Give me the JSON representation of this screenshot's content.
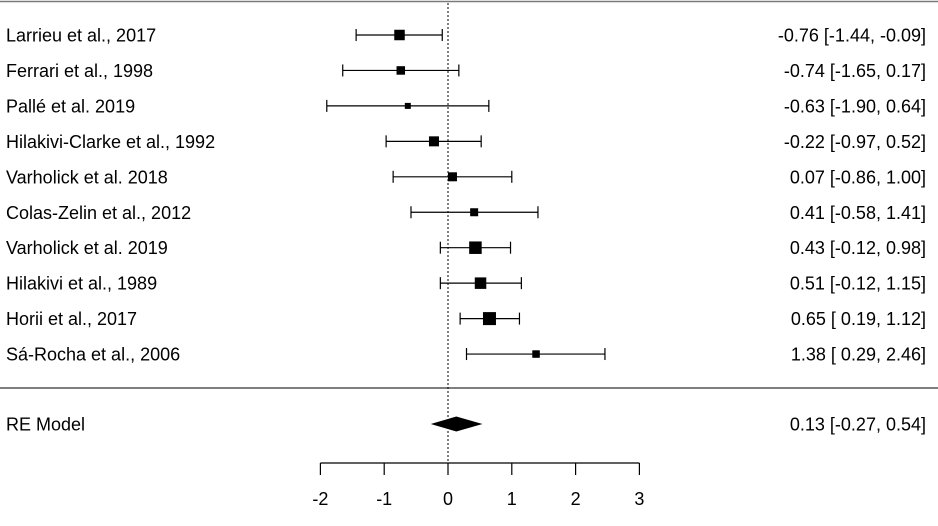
{
  "chart_data": {
    "type": "forest",
    "studies": [
      {
        "label": "Larrieu et al., 2017",
        "estimate": -0.76,
        "ci_low": -1.44,
        "ci_high": -0.09,
        "ci_text": "-0.76 [-1.44, -0.09]",
        "marker_weight": 0.75
      },
      {
        "label": "Ferrari et al., 1998",
        "estimate": -0.74,
        "ci_low": -1.65,
        "ci_high": 0.17,
        "ci_text": "-0.74 [-1.65,  0.17]",
        "marker_weight": 0.55
      },
      {
        "label": "Pallé et al. 2019",
        "estimate": -0.63,
        "ci_low": -1.9,
        "ci_high": 0.64,
        "ci_text": "-0.63 [-1.90,  0.64]",
        "marker_weight": 0.3
      },
      {
        "label": "Hilakivi-Clarke et al., 1992",
        "estimate": -0.22,
        "ci_low": -0.97,
        "ci_high": 0.52,
        "ci_text": "-0.22 [-0.97,  0.52]",
        "marker_weight": 0.7
      },
      {
        "label": "Varholick et al. 2018",
        "estimate": 0.07,
        "ci_low": -0.86,
        "ci_high": 1.0,
        "ci_text": "0.07 [-0.86,  1.00]",
        "marker_weight": 0.6
      },
      {
        "label": "Colas-Zelin et al., 2012",
        "estimate": 0.41,
        "ci_low": -0.58,
        "ci_high": 1.41,
        "ci_text": "0.41 [-0.58,  1.41]",
        "marker_weight": 0.5
      },
      {
        "label": "Varholick et al. 2019",
        "estimate": 0.43,
        "ci_low": -0.12,
        "ci_high": 0.98,
        "ci_text": "0.43 [-0.12,  0.98]",
        "marker_weight": 0.95
      },
      {
        "label": "Hilakivi et al., 1989",
        "estimate": 0.51,
        "ci_low": -0.12,
        "ci_high": 1.15,
        "ci_text": "0.51 [-0.12,  1.15]",
        "marker_weight": 0.85
      },
      {
        "label": "Horii et al., 2017",
        "estimate": 0.65,
        "ci_low": 0.19,
        "ci_high": 1.12,
        "ci_text": "0.65 [ 0.19,  1.12]",
        "marker_weight": 1.0
      },
      {
        "label": "Sá-Rocha et al., 2006",
        "estimate": 1.38,
        "ci_low": 0.29,
        "ci_high": 2.46,
        "ci_text": "1.38 [ 0.29,  2.46]",
        "marker_weight": 0.45
      }
    ],
    "summary": {
      "label": "RE Model",
      "estimate": 0.13,
      "ci_low": -0.27,
      "ci_high": 0.54,
      "ci_text": "0.13 [-0.27,  0.54]"
    },
    "xticks": [
      -2,
      -1,
      0,
      1,
      2,
      3
    ],
    "xtick_labels": [
      "-2",
      "-1",
      "0",
      "1",
      "2",
      "3"
    ],
    "xlim": [
      -2,
      3
    ],
    "reference_line": 0,
    "grid": false
  }
}
